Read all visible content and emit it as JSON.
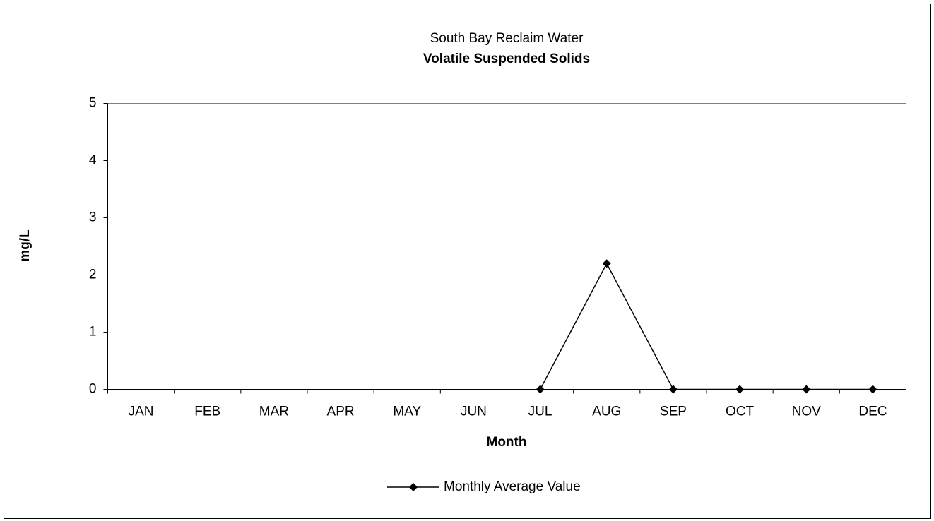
{
  "chart_data": {
    "type": "line",
    "title": "South Bay Reclaim Water",
    "subtitle": "Volatile Suspended Solids",
    "x_label": "Month",
    "y_label": "mg/L",
    "categories": [
      "JAN",
      "FEB",
      "MAR",
      "APR",
      "MAY",
      "JUN",
      "JUL",
      "AUG",
      "SEP",
      "OCT",
      "NOV",
      "DEC"
    ],
    "series": [
      {
        "name": "Monthly Average Value",
        "color": "#000000",
        "values": [
          null,
          null,
          null,
          null,
          null,
          null,
          0,
          2.2,
          0,
          0,
          0,
          0
        ]
      }
    ],
    "ylim": [
      0,
      5
    ],
    "yticks": [
      0,
      1,
      2,
      3,
      4,
      5
    ],
    "grid": false,
    "legend": "bottom"
  }
}
